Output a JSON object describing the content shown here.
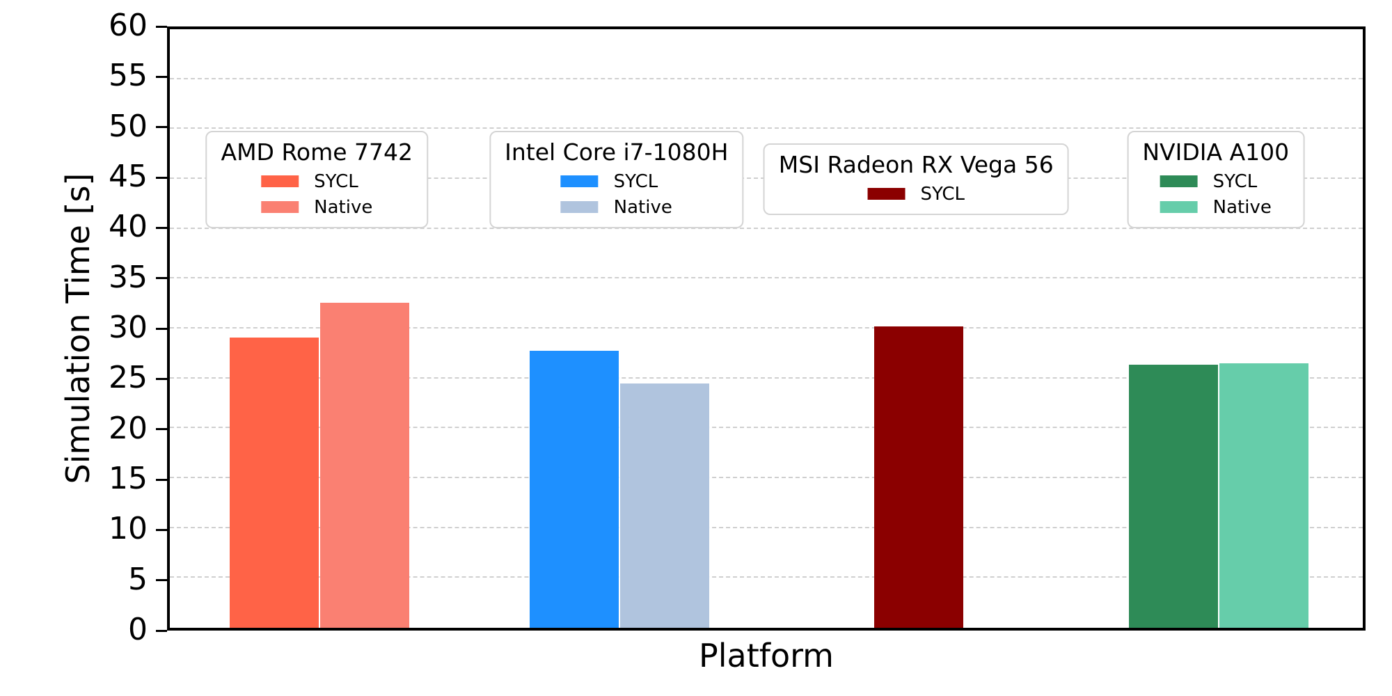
{
  "chart_data": {
    "type": "bar",
    "title": "",
    "xlabel": "Platform",
    "ylabel": "Simulation Time [s]",
    "ylim": [
      0,
      60
    ],
    "ytick_step": 5,
    "yticks": [
      "0",
      "5",
      "10",
      "15",
      "20",
      "25",
      "30",
      "35",
      "40",
      "45",
      "50",
      "55",
      "60"
    ],
    "grid": "horizontal dashed light-gray",
    "x_tick_labels": [],
    "legend_layout": "one boxed legend per platform group, inside plot top area, each with centered title",
    "groups": [
      {
        "name": "AMD Rome 7742",
        "series": [
          {
            "label": "SYCL",
            "color": "#FF6347",
            "value": 29.1
          },
          {
            "label": "Native",
            "color": "#FA8072",
            "value": 32.6
          }
        ]
      },
      {
        "name": "Intel Core i7-1080H",
        "series": [
          {
            "label": "SYCL",
            "color": "#1E90FF",
            "value": 27.8
          },
          {
            "label": "Native",
            "color": "#B0C4DE",
            "value": 24.5
          }
        ]
      },
      {
        "name": "MSI Radeon RX Vega 56",
        "series": [
          {
            "label": "SYCL",
            "color": "#8B0000",
            "value": 30.2
          }
        ]
      },
      {
        "name": "NVIDIA A100",
        "series": [
          {
            "label": "SYCL",
            "color": "#2E8B57",
            "value": 26.4
          },
          {
            "label": "Native",
            "color": "#66CDAA",
            "value": 26.5
          }
        ]
      }
    ],
    "colors": {
      "axis": "#000000",
      "grid": "#cfcfcf",
      "legend_border": "#d4d4d4",
      "background": "#ffffff"
    }
  }
}
